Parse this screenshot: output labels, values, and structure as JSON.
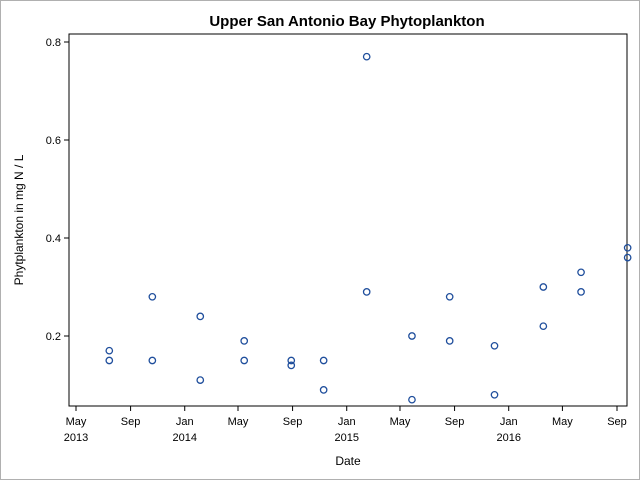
{
  "chart_data": {
    "type": "scatter",
    "title": "Upper San Antonio Bay Phytoplankton",
    "xlabel": "Date",
    "ylabel": "Phytplankton in mg N / L",
    "ylim": [
      0.05,
      0.83
    ],
    "y_ticks": [
      {
        "value": 0.2,
        "label": "0.2"
      },
      {
        "value": 0.4,
        "label": "0.4"
      },
      {
        "value": 0.6,
        "label": "0.6"
      },
      {
        "value": 0.8,
        "label": "0.8"
      }
    ],
    "x_ticks": [
      {
        "date": "2013-05-01",
        "label": "May",
        "year_label": "2013"
      },
      {
        "date": "2013-09-01",
        "label": "Sep",
        "year_label": ""
      },
      {
        "date": "2014-01-01",
        "label": "Jan",
        "year_label": "2014"
      },
      {
        "date": "2014-05-01",
        "label": "May",
        "year_label": ""
      },
      {
        "date": "2014-09-01",
        "label": "Sep",
        "year_label": ""
      },
      {
        "date": "2015-01-01",
        "label": "Jan",
        "year_label": "2015"
      },
      {
        "date": "2015-05-01",
        "label": "May",
        "year_label": ""
      },
      {
        "date": "2015-09-01",
        "label": "Sep",
        "year_label": ""
      },
      {
        "date": "2016-01-01",
        "label": "Jan",
        "year_label": "2016"
      },
      {
        "date": "2016-05-01",
        "label": "May",
        "year_label": ""
      },
      {
        "date": "2016-09-01",
        "label": "Sep",
        "year_label": ""
      }
    ],
    "grid": false,
    "marker": "open-circle",
    "marker_color": "#1f4e9c",
    "points": [
      {
        "x": "2013-07-15",
        "y": 0.17
      },
      {
        "x": "2013-07-15",
        "y": 0.15
      },
      {
        "x": "2013-10-20",
        "y": 0.28
      },
      {
        "x": "2013-10-20",
        "y": 0.15
      },
      {
        "x": "2014-02-05",
        "y": 0.24
      },
      {
        "x": "2014-02-05",
        "y": 0.11
      },
      {
        "x": "2014-05-15",
        "y": 0.19
      },
      {
        "x": "2014-05-15",
        "y": 0.15
      },
      {
        "x": "2014-08-29",
        "y": 0.15
      },
      {
        "x": "2014-08-29",
        "y": 0.14
      },
      {
        "x": "2014-11-10",
        "y": 0.15
      },
      {
        "x": "2014-11-10",
        "y": 0.09
      },
      {
        "x": "2015-02-15",
        "y": 0.77
      },
      {
        "x": "2015-02-15",
        "y": 0.29
      },
      {
        "x": "2015-05-28",
        "y": 0.2
      },
      {
        "x": "2015-05-28",
        "y": 0.07
      },
      {
        "x": "2015-08-21",
        "y": 0.28
      },
      {
        "x": "2015-08-21",
        "y": 0.19
      },
      {
        "x": "2015-11-30",
        "y": 0.18
      },
      {
        "x": "2015-11-30",
        "y": 0.08
      },
      {
        "x": "2016-03-19",
        "y": 0.3
      },
      {
        "x": "2016-03-19",
        "y": 0.22
      },
      {
        "x": "2016-06-12",
        "y": 0.33
      },
      {
        "x": "2016-06-12",
        "y": 0.29
      },
      {
        "x": "2016-09-25",
        "y": 0.38
      },
      {
        "x": "2016-09-25",
        "y": 0.36
      }
    ]
  }
}
